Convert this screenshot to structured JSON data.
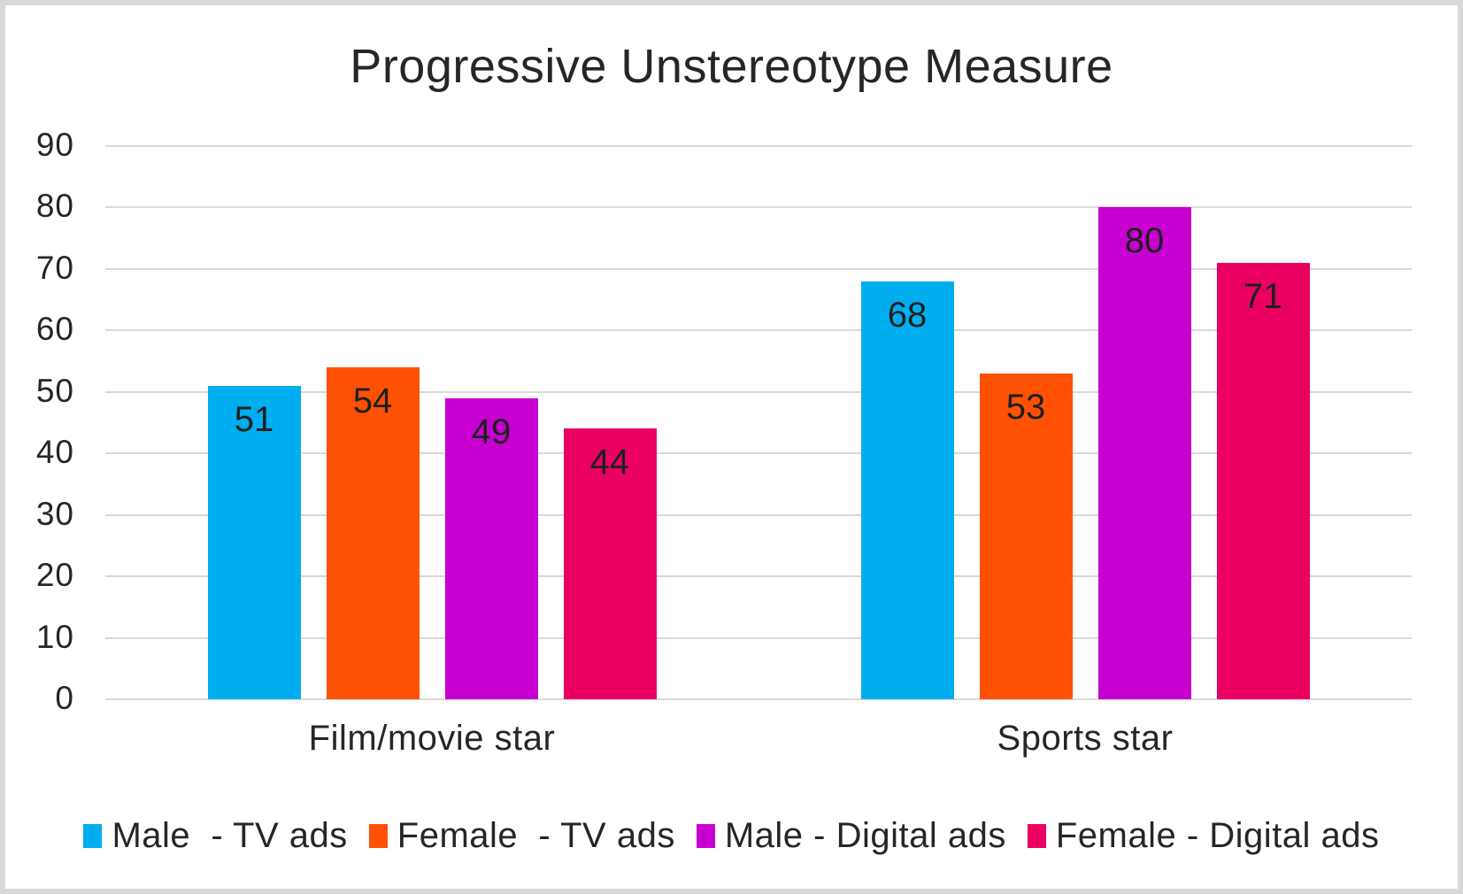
{
  "chart_data": {
    "type": "bar",
    "title": "Progressive Unstereotype Measure",
    "categories": [
      "Film/movie star",
      "Sports star"
    ],
    "series": [
      {
        "name": "Male  - TV ads",
        "color": "#00AEEF",
        "values": [
          51,
          68
        ]
      },
      {
        "name": "Female  - TV ads",
        "color": "#FF5104",
        "values": [
          54,
          53
        ]
      },
      {
        "name": "Male - Digital ads",
        "color": "#C700D1",
        "values": [
          49,
          80
        ]
      },
      {
        "name": "Female - Digital ads",
        "color": "#EA0061",
        "values": [
          44,
          71
        ]
      }
    ],
    "ylim": [
      0,
      90
    ],
    "ytick_step": 10,
    "yticks": [
      0,
      10,
      20,
      30,
      40,
      50,
      60,
      70,
      80,
      90
    ],
    "grid": true,
    "gridline_color": "#D9D9D9",
    "data_labels": "inside-end",
    "legend_position": "bottom",
    "text_color": "#262626",
    "background_color": "#FFFFFF",
    "border_color": "#D8D8D8"
  }
}
